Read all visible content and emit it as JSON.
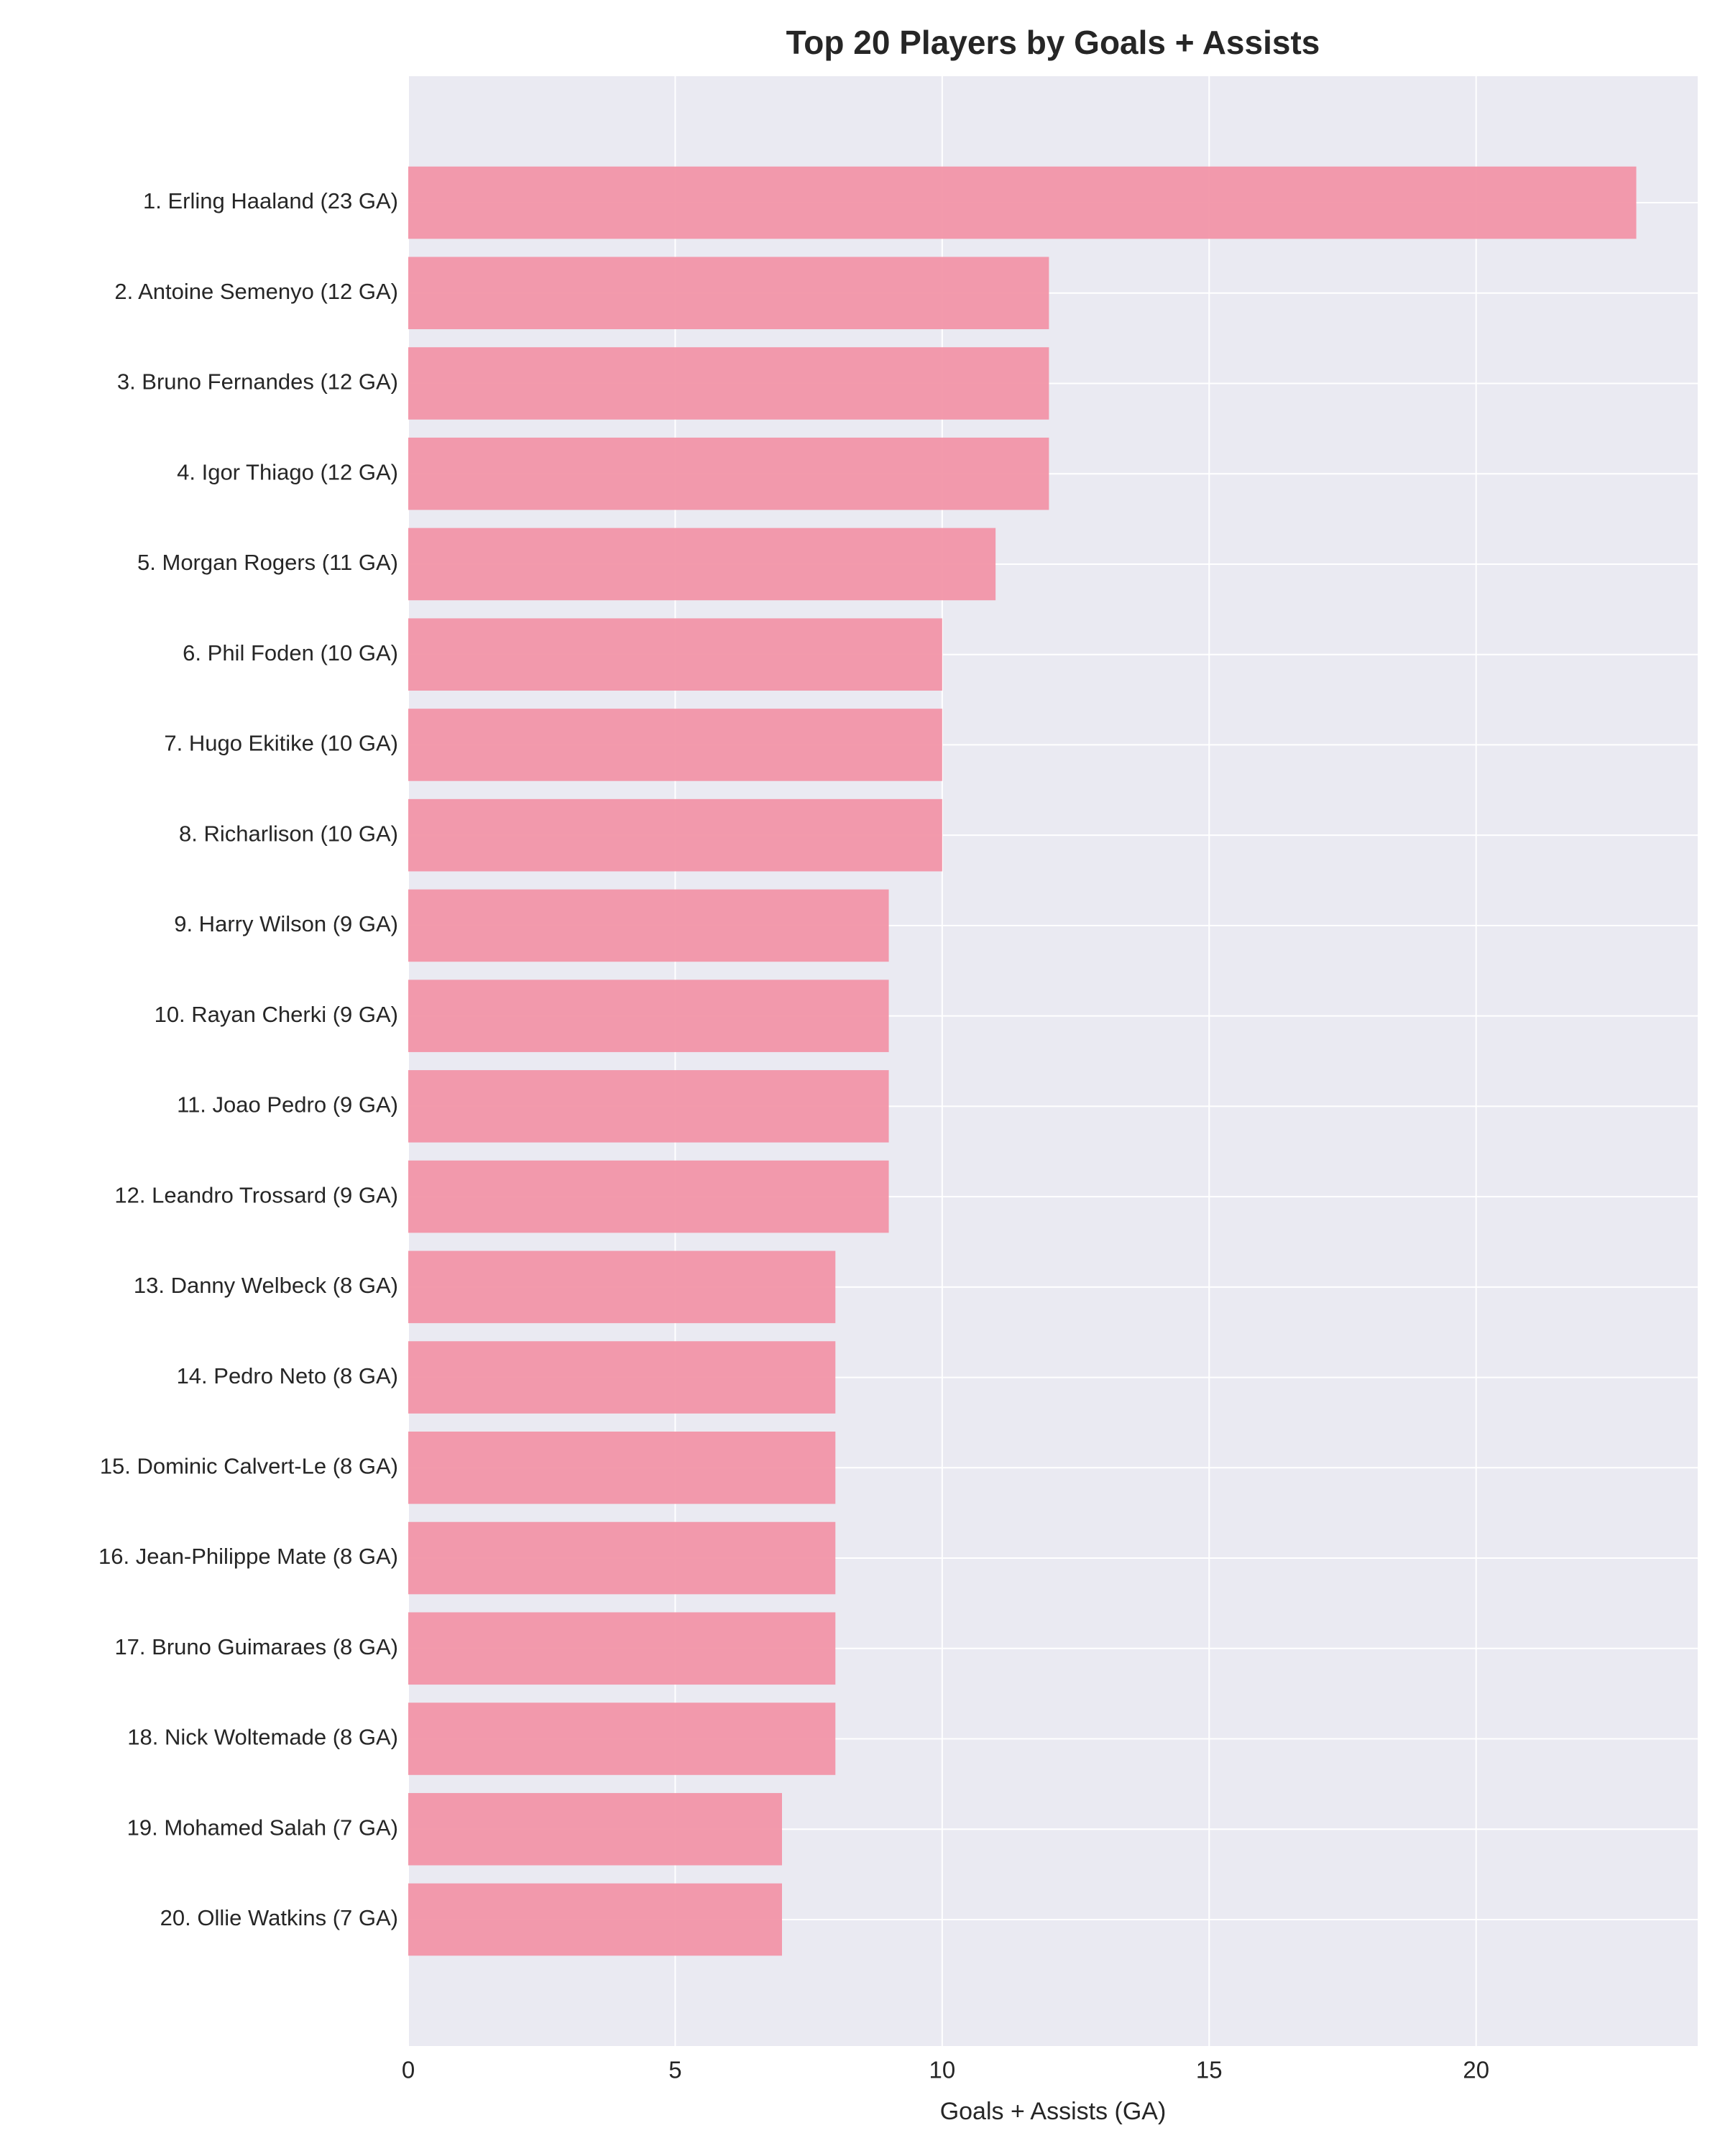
{
  "chart_data": {
    "type": "barh",
    "title": "Top 20 Players by Goals + Assists",
    "xlabel": "Goals + Assists (GA)",
    "categories": [
      "1. Erling Haaland (23 GA)",
      "2. Antoine Semenyo (12 GA)",
      "3. Bruno Fernandes (12 GA)",
      "4. Igor Thiago (12 GA)",
      "5. Morgan Rogers (11 GA)",
      "6. Phil Foden (10 GA)",
      "7. Hugo Ekitike (10 GA)",
      "8. Richarlison (10 GA)",
      "9. Harry Wilson (9 GA)",
      "10. Rayan Cherki (9 GA)",
      "11. Joao Pedro (9 GA)",
      "12. Leandro Trossard (9 GA)",
      "13. Danny Welbeck (8 GA)",
      "14. Pedro Neto (8 GA)",
      "15. Dominic Calvert-Le (8 GA)",
      "16. Jean-Philippe Mate (8 GA)",
      "17. Bruno Guimaraes (8 GA)",
      "18. Nick Woltemade (8 GA)",
      "19. Mohamed Salah (7 GA)",
      "20. Ollie Watkins (7 GA)"
    ],
    "values": [
      23,
      12,
      12,
      12,
      11,
      10,
      10,
      10,
      9,
      9,
      9,
      9,
      8,
      8,
      8,
      8,
      8,
      8,
      7,
      7
    ],
    "color": "#f295a8",
    "xlim": [
      0,
      24.15
    ],
    "xticks": [
      0,
      5,
      10,
      15,
      20
    ],
    "grid": true
  }
}
